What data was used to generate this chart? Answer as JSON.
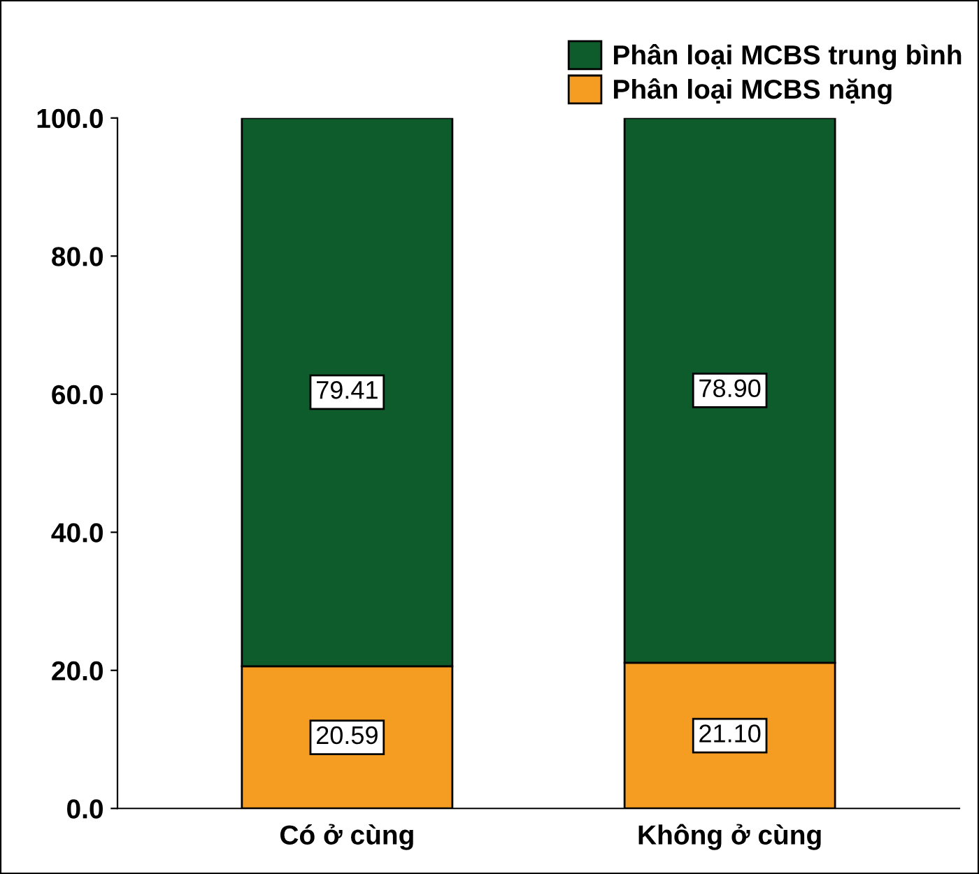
{
  "chart_data": {
    "type": "bar",
    "stacked": true,
    "categories": [
      "Có ở cùng",
      "Không ở cùng"
    ],
    "series": [
      {
        "name": "Phân loại MCBS nặng",
        "color": "#f59c22",
        "values": [
          20.59,
          21.1
        ],
        "value_labels": [
          "20.59",
          "21.10"
        ]
      },
      {
        "name": "Phân loại MCBS trung bình",
        "color": "#0e5b2c",
        "values": [
          79.41,
          78.9
        ],
        "value_labels": [
          "79.41",
          "78.90"
        ]
      }
    ],
    "ylim": [
      0,
      100
    ],
    "yticks": [
      {
        "value": 0,
        "label": "0.0"
      },
      {
        "value": 20,
        "label": "20.0"
      },
      {
        "value": 40,
        "label": "40.0"
      },
      {
        "value": 60,
        "label": "60.0"
      },
      {
        "value": 80,
        "label": "80.0"
      },
      {
        "value": 100,
        "label": "100.0"
      }
    ],
    "grid": false,
    "legend": "top right"
  }
}
